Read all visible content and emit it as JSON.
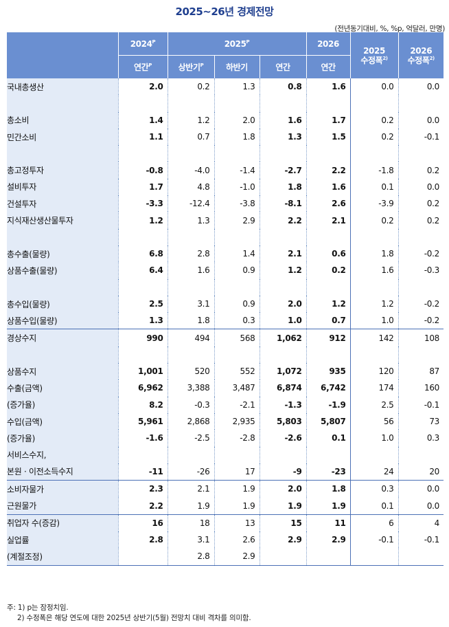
{
  "title": "2025~26년 경제전망",
  "unit_note": "(전년동기대비, %, %p, 억달러, 만명)",
  "header": {
    "y2024": "2024",
    "y2024_sup": "P",
    "y2025": "2025",
    "y2025_sup": "P",
    "y2026": "2026",
    "rev2025": "2025",
    "rev2025_sub": "수정폭",
    "rev2025_sup": "2)",
    "rev2026": "2026",
    "rev2026_sub": "수정폭",
    "rev2026_sup": "2)",
    "sub_annual_2024": "연간",
    "sub_annual_2024_sup": "P",
    "sub_h1": "상반기",
    "sub_h1_sup": "P",
    "sub_h2": "하반기",
    "sub_annual_2025": "연간",
    "sub_annual_2026": "연간"
  },
  "rows": [
    {
      "label": "국내총생산",
      "v": [
        "2.0",
        "0.2",
        "1.3",
        "0.8",
        "1.6",
        "0.0",
        "0.0"
      ]
    },
    {
      "label": "",
      "v": [
        "",
        "",
        "",
        "",
        "",
        "",
        ""
      ]
    },
    {
      "label": "총소비",
      "v": [
        "1.4",
        "1.2",
        "2.0",
        "1.6",
        "1.7",
        "0.2",
        "0.0"
      ]
    },
    {
      "label": "민간소비",
      "v": [
        "1.1",
        "0.7",
        "1.8",
        "1.3",
        "1.5",
        "0.2",
        "-0.1"
      ]
    },
    {
      "label": "",
      "v": [
        "",
        "",
        "",
        "",
        "",
        "",
        ""
      ]
    },
    {
      "label": "총고정투자",
      "v": [
        "-0.8",
        "-4.0",
        "-1.4",
        "-2.7",
        "2.2",
        "-1.8",
        "0.2"
      ]
    },
    {
      "label": "설비투자",
      "v": [
        "1.7",
        "4.8",
        "-1.0",
        "1.8",
        "1.6",
        "0.1",
        "0.0"
      ]
    },
    {
      "label": "건설투자",
      "v": [
        "-3.3",
        "-12.4",
        "-3.8",
        "-8.1",
        "2.6",
        "-3.9",
        "0.2"
      ]
    },
    {
      "label": "지식재산생산물투자",
      "v": [
        "1.2",
        "1.3",
        "2.9",
        "2.2",
        "2.1",
        "0.2",
        "0.2"
      ]
    },
    {
      "label": "",
      "v": [
        "",
        "",
        "",
        "",
        "",
        "",
        ""
      ]
    },
    {
      "label": "총수출(물량)",
      "v": [
        "6.8",
        "2.8",
        "1.4",
        "2.1",
        "0.6",
        "1.8",
        "-0.2"
      ]
    },
    {
      "label": "상품수출(물량)",
      "v": [
        "6.4",
        "1.6",
        "0.9",
        "1.2",
        "0.2",
        "1.6",
        "-0.3"
      ]
    },
    {
      "label": "",
      "v": [
        "",
        "",
        "",
        "",
        "",
        "",
        ""
      ]
    },
    {
      "label": "총수입(물량)",
      "v": [
        "2.5",
        "3.1",
        "0.9",
        "2.0",
        "1.2",
        "1.2",
        "-0.2"
      ]
    },
    {
      "label": "상품수입(물량)",
      "v": [
        "1.3",
        "1.8",
        "0.3",
        "1.0",
        "0.7",
        "1.0",
        "-0.2"
      ]
    },
    {
      "label": "경상수지",
      "v": [
        "990",
        "494",
        "568",
        "1,062",
        "912",
        "142",
        "108"
      ]
    },
    {
      "label": "",
      "v": [
        "",
        "",
        "",
        "",
        "",
        "",
        ""
      ]
    },
    {
      "label": "상품수지",
      "v": [
        "1,001",
        "520",
        "552",
        "1,072",
        "935",
        "120",
        "87"
      ]
    },
    {
      "label": "수출(금액)",
      "v": [
        "6,962",
        "3,388",
        "3,487",
        "6,874",
        "6,742",
        "174",
        "160"
      ]
    },
    {
      "label": "(증가율)",
      "v": [
        "8.2",
        "-0.3",
        "-2.1",
        "-1.3",
        "-1.9",
        "2.5",
        "-0.1"
      ]
    },
    {
      "label": "수입(금액)",
      "v": [
        "5,961",
        "2,868",
        "2,935",
        "5,803",
        "5,807",
        "56",
        "73"
      ]
    },
    {
      "label": "(증가율)",
      "v": [
        "-1.6",
        "-2.5",
        "-2.8",
        "-2.6",
        "0.1",
        "1.0",
        "0.3"
      ]
    },
    {
      "label": "서비스수지,",
      "v": [
        "",
        "",
        "",
        "",
        "",
        "",
        ""
      ]
    },
    {
      "label": "본원 · 이전소득수지",
      "v": [
        "-11",
        "-26",
        "17",
        "-9",
        "-23",
        "24",
        "20"
      ]
    },
    {
      "label": "소비자물가",
      "v": [
        "2.3",
        "2.1",
        "1.9",
        "2.0",
        "1.8",
        "0.3",
        "0.0"
      ]
    },
    {
      "label": "근원물가",
      "v": [
        "2.2",
        "1.9",
        "1.9",
        "1.9",
        "1.9",
        "0.1",
        "0.0"
      ]
    },
    {
      "label": "취업자 수(증감)",
      "v": [
        "16",
        "18",
        "13",
        "15",
        "11",
        "6",
        "4"
      ]
    },
    {
      "label": "실업률",
      "v": [
        "2.8",
        "3.1",
        "2.6",
        "2.9",
        "2.9",
        "-0.1",
        "-0.1"
      ]
    },
    {
      "label": "(계절조정)",
      "v": [
        "",
        "2.8",
        "2.9",
        "",
        "",
        "",
        ""
      ]
    }
  ],
  "notes": [
    "주: 1) p는 잠정치임.",
    "2) 수정폭은 해당 연도에 대한 2025년 상반기(5월) 전망치 대비 격차를 의미함."
  ]
}
